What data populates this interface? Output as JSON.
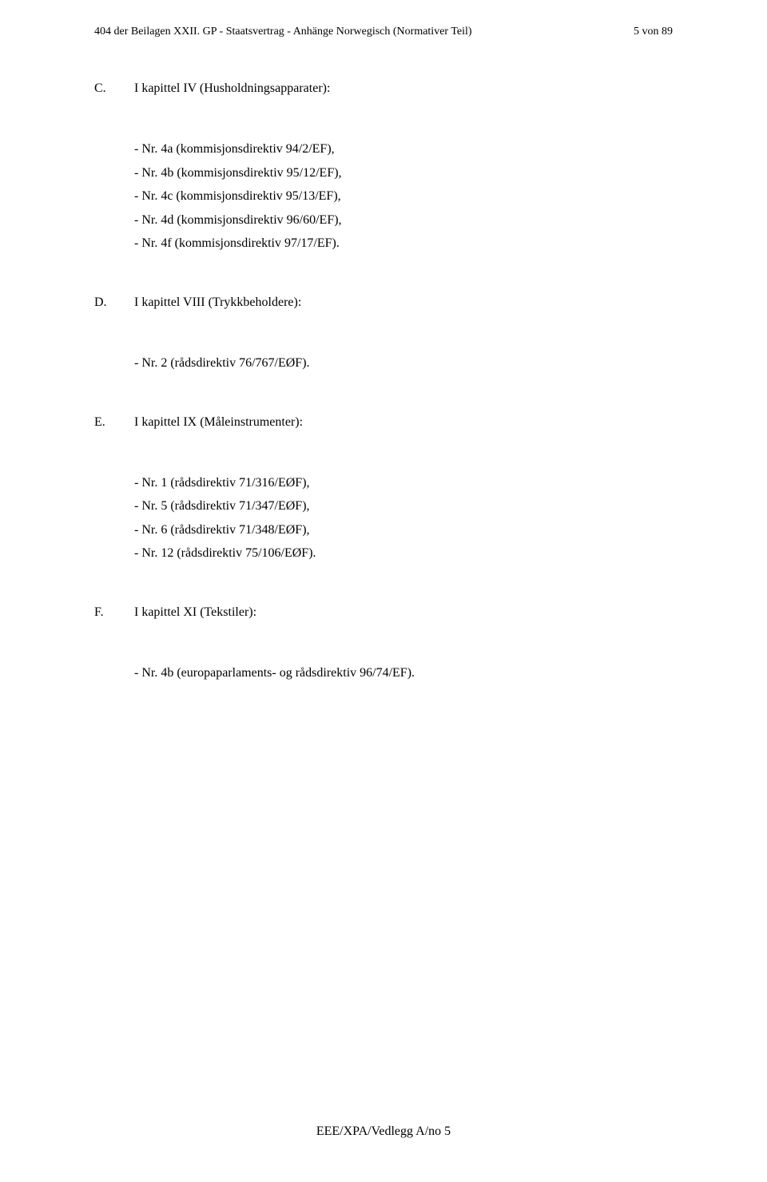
{
  "header": {
    "left": "404 der Beilagen XXII. GP - Staatsvertrag - Anhänge Norwegisch (Normativer Teil)",
    "right": "5 von 89"
  },
  "sections": [
    {
      "letter": "C.",
      "title": "I kapittel IV (Husholdningsapparater):",
      "items": [
        "- Nr. 4a (kommisjonsdirektiv 94/2/EF),",
        "- Nr. 4b (kommisjonsdirektiv 95/12/EF),",
        "- Nr. 4c (kommisjonsdirektiv 95/13/EF),",
        "- Nr. 4d (kommisjonsdirektiv 96/60/EF),",
        "- Nr. 4f (kommisjonsdirektiv 97/17/EF)."
      ]
    },
    {
      "letter": "D.",
      "title": "I kapittel VIII (Trykkbeholdere):",
      "items": [
        "- Nr. 2 (rådsdirektiv 76/767/EØF)."
      ]
    },
    {
      "letter": "E.",
      "title": "I kapittel IX (Måleinstrumenter):",
      "items": [
        "- Nr. 1 (rådsdirektiv 71/316/EØF),",
        "- Nr. 5 (rådsdirektiv 71/347/EØF),",
        "- Nr. 6 (rådsdirektiv 71/348/EØF),",
        "- Nr. 12 (rådsdirektiv 75/106/EØF)."
      ]
    },
    {
      "letter": "F.",
      "title": "I kapittel XI (Tekstiler):",
      "items": [
        "- Nr. 4b (europaparlaments- og rådsdirektiv 96/74/EF)."
      ]
    }
  ],
  "footer": "EEE/XPA/Vedlegg A/no 5"
}
